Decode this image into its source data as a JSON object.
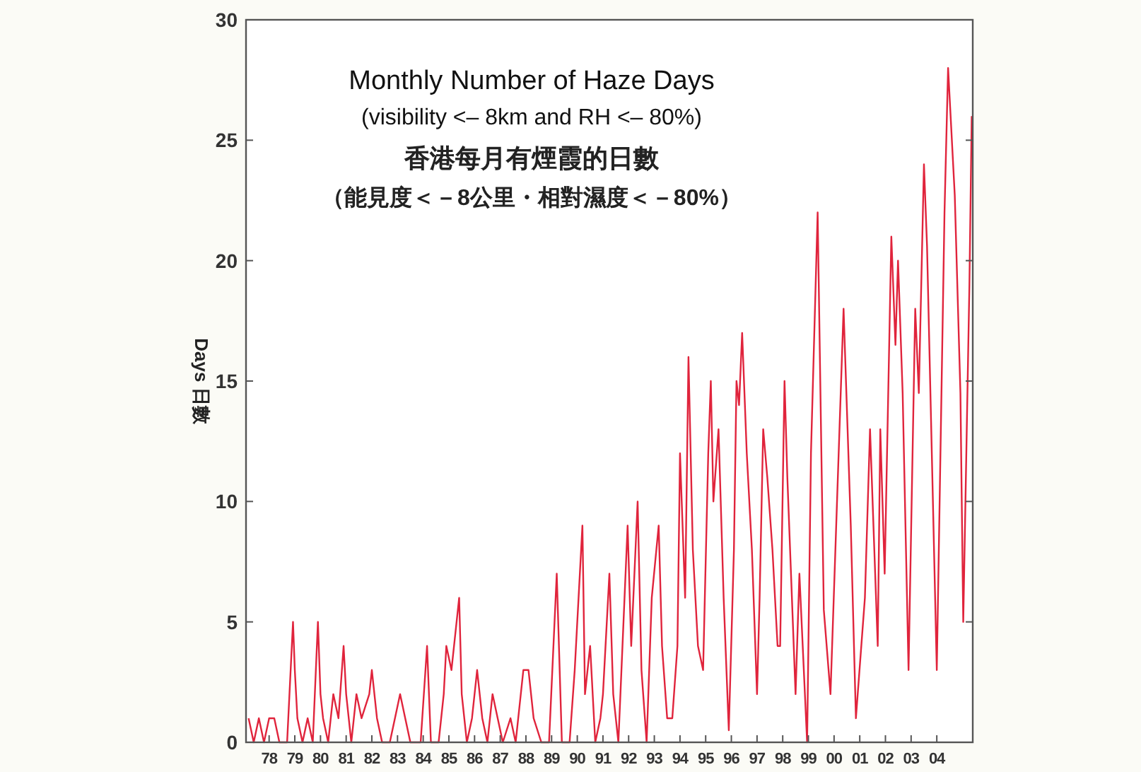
{
  "chart_data": {
    "type": "line",
    "title": "Monthly Number of Haze Days",
    "subtitle": "(visibility <– 8km and RH <– 80%)",
    "annotations": [
      "香港每月有煙霞的日數",
      "（能見度＜－8公里・相對濕度＜－80%）"
    ],
    "ylabel": "Days 日數",
    "xlim": [
      1977.1,
      2005.4
    ],
    "ylim": [
      0,
      30
    ],
    "yticks": [
      0,
      5,
      10,
      15,
      20,
      25,
      30
    ],
    "xticks": [
      {
        "value": 1978,
        "label": "78"
      },
      {
        "value": 1979,
        "label": "79"
      },
      {
        "value": 1980,
        "label": "80"
      },
      {
        "value": 1981,
        "label": "81"
      },
      {
        "value": 1982,
        "label": "82"
      },
      {
        "value": 1983,
        "label": "83"
      },
      {
        "value": 1984,
        "label": "84"
      },
      {
        "value": 1985,
        "label": "85"
      },
      {
        "value": 1986,
        "label": "86"
      },
      {
        "value": 1987,
        "label": "87"
      },
      {
        "value": 1988,
        "label": "88"
      },
      {
        "value": 1989,
        "label": "89"
      },
      {
        "value": 1990,
        "label": "90"
      },
      {
        "value": 1991,
        "label": "91"
      },
      {
        "value": 1992,
        "label": "92"
      },
      {
        "value": 1993,
        "label": "93"
      },
      {
        "value": 1994,
        "label": "94"
      },
      {
        "value": 1995,
        "label": "95"
      },
      {
        "value": 1996,
        "label": "96"
      },
      {
        "value": 1997,
        "label": "97"
      },
      {
        "value": 1998,
        "label": "98"
      },
      {
        "value": 1999,
        "label": "99"
      },
      {
        "value": 2000,
        "label": "00"
      },
      {
        "value": 2001,
        "label": "01"
      },
      {
        "value": 2002,
        "label": "02"
      },
      {
        "value": 2003,
        "label": "03"
      },
      {
        "value": 2004,
        "label": "04"
      }
    ],
    "marker": "none",
    "line_style": "solid",
    "series": [
      {
        "color": "#e0243c",
        "x": [
          1977.2,
          1977.4,
          1977.6,
          1977.8,
          1978.0,
          1978.2,
          1978.4,
          1978.7,
          1978.93,
          1979.0,
          1979.1,
          1979.3,
          1979.5,
          1979.7,
          1979.9,
          1980.0,
          1980.1,
          1980.3,
          1980.5,
          1980.7,
          1980.9,
          1981.0,
          1981.2,
          1981.4,
          1981.6,
          1981.9,
          1982.0,
          1982.2,
          1982.4,
          1982.7,
          1982.9,
          1983.1,
          1983.3,
          1983.5,
          1983.9,
          1984.15,
          1984.3,
          1984.6,
          1984.8,
          1984.9,
          1985.1,
          1985.4,
          1985.5,
          1985.7,
          1985.9,
          1986.1,
          1986.3,
          1986.5,
          1986.7,
          1986.9,
          1987.1,
          1987.4,
          1987.6,
          1987.9,
          1988.1,
          1988.3,
          1988.6,
          1988.9,
          1989.2,
          1989.4,
          1989.7,
          1989.9,
          1990.2,
          1990.3,
          1990.5,
          1990.7,
          1990.9,
          1991.0,
          1991.25,
          1991.4,
          1991.6,
          1991.8,
          1991.96,
          1992.1,
          1992.35,
          1992.5,
          1992.7,
          1992.9,
          1993.17,
          1993.3,
          1993.5,
          1993.7,
          1993.9,
          1994.0,
          1994.2,
          1994.33,
          1994.5,
          1994.7,
          1994.9,
          1995.1,
          1995.2,
          1995.3,
          1995.5,
          1995.7,
          1995.9,
          1996.1,
          1996.2,
          1996.3,
          1996.42,
          1996.6,
          1996.8,
          1997.0,
          1997.1,
          1997.24,
          1997.4,
          1997.6,
          1997.8,
          1997.9,
          1998.07,
          1998.18,
          1998.5,
          1998.65,
          1998.95,
          1999.1,
          1999.36,
          1999.6,
          1999.86,
          2000.37,
          2000.65,
          2000.85,
          2001.2,
          2001.4,
          2001.7,
          2001.8,
          2001.97,
          2002.23,
          2002.39,
          2002.49,
          2002.67,
          2002.9,
          2003.16,
          2003.3,
          2003.5,
          2003.62,
          2004.0,
          2004.3,
          2004.44,
          2004.7,
          2004.92,
          2005.03,
          2005.27,
          2005.36
        ],
        "values": [
          1,
          0,
          1,
          0,
          1,
          1,
          0,
          0,
          5,
          3,
          1,
          0,
          1,
          0,
          5,
          2,
          1,
          0,
          2,
          1,
          4,
          2,
          0,
          2,
          1,
          2,
          3,
          1,
          0,
          0,
          1,
          2,
          1,
          0,
          0,
          4,
          0,
          0,
          2,
          4,
          3,
          6,
          2,
          0,
          1,
          3,
          1,
          0,
          2,
          1,
          0,
          1,
          0,
          3,
          3,
          1,
          0,
          0,
          7,
          0,
          0,
          3,
          9,
          2,
          4,
          0,
          1,
          2,
          7,
          2,
          0,
          5,
          9,
          4,
          10,
          3,
          0,
          6,
          9,
          4,
          1,
          1,
          4,
          12,
          6,
          16,
          8,
          4,
          3,
          12,
          15,
          10,
          13,
          6,
          0.5,
          8,
          15,
          14,
          17,
          12,
          8,
          2,
          6,
          13,
          11,
          8,
          4,
          4,
          15,
          11,
          2,
          7,
          0,
          12,
          22,
          5.5,
          2,
          18,
          9,
          1,
          6,
          13,
          4,
          13,
          7,
          21,
          16.5,
          20,
          14.5,
          3,
          18,
          14.5,
          24,
          20.6,
          3,
          22,
          28,
          22.7,
          14.5,
          5,
          19,
          26
        ]
      }
    ]
  }
}
